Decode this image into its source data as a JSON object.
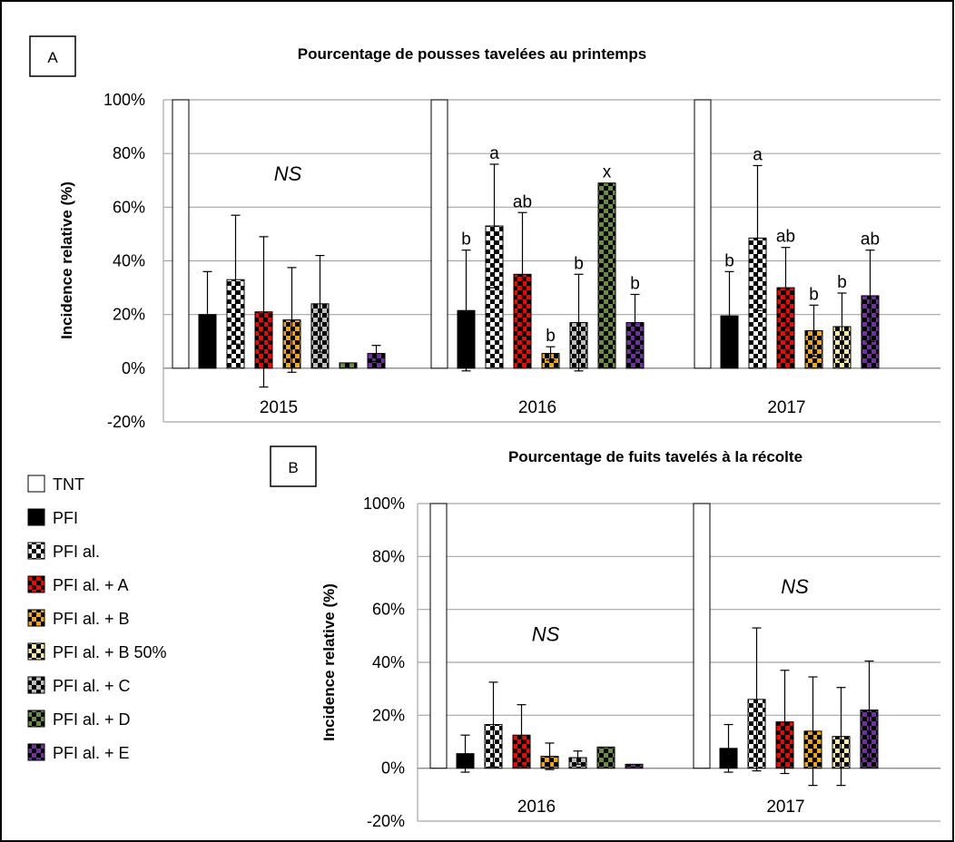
{
  "colors": {
    "TNT": "#ffffff",
    "PFI": "#000000",
    "PFI al.": "#ffffff",
    "PFI al. + A": "#ff0000",
    "PFI al. + B": "#f2a900",
    "PFI al. + B 50%": "#ffee99",
    "PFI al. + C": "#bfbfbf",
    "PFI al. + D": "#6a8f3a",
    "PFI al. + E": "#7030a0"
  },
  "legend": {
    "items": [
      "TNT",
      "PFI",
      "PFI al.",
      "PFI al. + A",
      "PFI al. + B",
      "PFI al. + B 50%",
      "PFI al. + C",
      "PFI al. + D",
      "PFI al. + E"
    ]
  },
  "chart_data": [
    {
      "panel": "A",
      "type": "bar",
      "title": "Pourcentage de pousses tavelées au printemps",
      "ylabel": "Incidence relative (%)",
      "ylim": [
        -20,
        100
      ],
      "yticks": [
        "-20%",
        "0%",
        "20%",
        "40%",
        "60%",
        "80%",
        "100%"
      ],
      "grid": true,
      "categories": [
        "2015",
        "2016",
        "2017"
      ],
      "ns_labels": [
        {
          "category": "2015",
          "text": "NS",
          "y": 70
        }
      ],
      "groups": [
        {
          "category": "2015",
          "bars": [
            {
              "series": "TNT",
              "value": 100
            },
            {
              "series": "PFI",
              "value": 20,
              "err": 16
            },
            {
              "series": "PFI al.",
              "value": 33,
              "err": 24
            },
            {
              "series": "PFI al. + A",
              "value": 21,
              "err": 28
            },
            {
              "series": "PFI al. + B",
              "value": 18,
              "err": 19.5
            },
            {
              "series": "PFI al. + C",
              "value": 24,
              "err": 18
            },
            {
              "series": "PFI al. + D",
              "value": 2
            },
            {
              "series": "PFI al. + E",
              "value": 5.5,
              "err": 3
            }
          ]
        },
        {
          "category": "2016",
          "bars": [
            {
              "series": "TNT",
              "value": 100
            },
            {
              "series": "PFI",
              "value": 21.5,
              "err": 22.5,
              "label": "b"
            },
            {
              "series": "PFI al.",
              "value": 53,
              "err": 23,
              "label": "a"
            },
            {
              "series": "PFI al. + A",
              "value": 35,
              "err": 23,
              "label": "ab"
            },
            {
              "series": "PFI al. + B",
              "value": 5.5,
              "err": 2.5,
              "label": "b"
            },
            {
              "series": "PFI al. + C",
              "value": 17,
              "err": 18,
              "label": "b"
            },
            {
              "series": "PFI al. + D",
              "value": 69,
              "label": "x"
            },
            {
              "series": "PFI al. + E",
              "value": 17,
              "err": 10.5,
              "label": "b"
            }
          ]
        },
        {
          "category": "2017",
          "bars": [
            {
              "series": "TNT",
              "value": 100
            },
            {
              "series": "PFI",
              "value": 19.5,
              "err": 16.5,
              "label": "b"
            },
            {
              "series": "PFI al.",
              "value": 48.5,
              "err": 27,
              "label": "a"
            },
            {
              "series": "PFI al. + A",
              "value": 30,
              "err": 15,
              "label": "ab"
            },
            {
              "series": "PFI al. + B",
              "value": 14,
              "err": 9.5,
              "label": "b"
            },
            {
              "series": "PFI al. + B 50%",
              "value": 15.5,
              "err": 12.5,
              "label": "b"
            },
            {
              "series": "PFI al. + E",
              "value": 27,
              "err": 17,
              "label": "ab"
            }
          ]
        }
      ]
    },
    {
      "panel": "B",
      "type": "bar",
      "title": "Pourcentage de fuits tavelés à la récolte",
      "ylabel": "Incidence relative (%)",
      "ylim": [
        -20,
        100
      ],
      "yticks": [
        "-20%",
        "0%",
        "20%",
        "40%",
        "60%",
        "80%",
        "100%"
      ],
      "grid": true,
      "categories": [
        "2016",
        "2017"
      ],
      "ns_labels": [
        {
          "category": "2016",
          "text": "NS",
          "y": 48
        },
        {
          "category": "2017",
          "text": "NS",
          "y": 66
        }
      ],
      "groups": [
        {
          "category": "2016",
          "bars": [
            {
              "series": "TNT",
              "value": 100
            },
            {
              "series": "PFI",
              "value": 5.5,
              "err": 7
            },
            {
              "series": "PFI al.",
              "value": 16.5,
              "err": 16
            },
            {
              "series": "PFI al. + A",
              "value": 12.5,
              "err": 11.5
            },
            {
              "series": "PFI al. + B",
              "value": 4.5,
              "err": 5
            },
            {
              "series": "PFI al. + C",
              "value": 4,
              "err": 2.5
            },
            {
              "series": "PFI al. + D",
              "value": 8
            },
            {
              "series": "PFI al. + E",
              "value": 1.5
            }
          ]
        },
        {
          "category": "2017",
          "bars": [
            {
              "series": "TNT",
              "value": 100
            },
            {
              "series": "PFI",
              "value": 7.5,
              "err": 9
            },
            {
              "series": "PFI al.",
              "value": 26,
              "err": 27
            },
            {
              "series": "PFI al. + A",
              "value": 17.5,
              "err": 19.5
            },
            {
              "series": "PFI al. + B",
              "value": 14,
              "err": 20.5
            },
            {
              "series": "PFI al. + B 50%",
              "value": 12,
              "err": 18.5
            },
            {
              "series": "PFI al. + E",
              "value": 22,
              "err": 18.5
            }
          ]
        }
      ]
    }
  ]
}
